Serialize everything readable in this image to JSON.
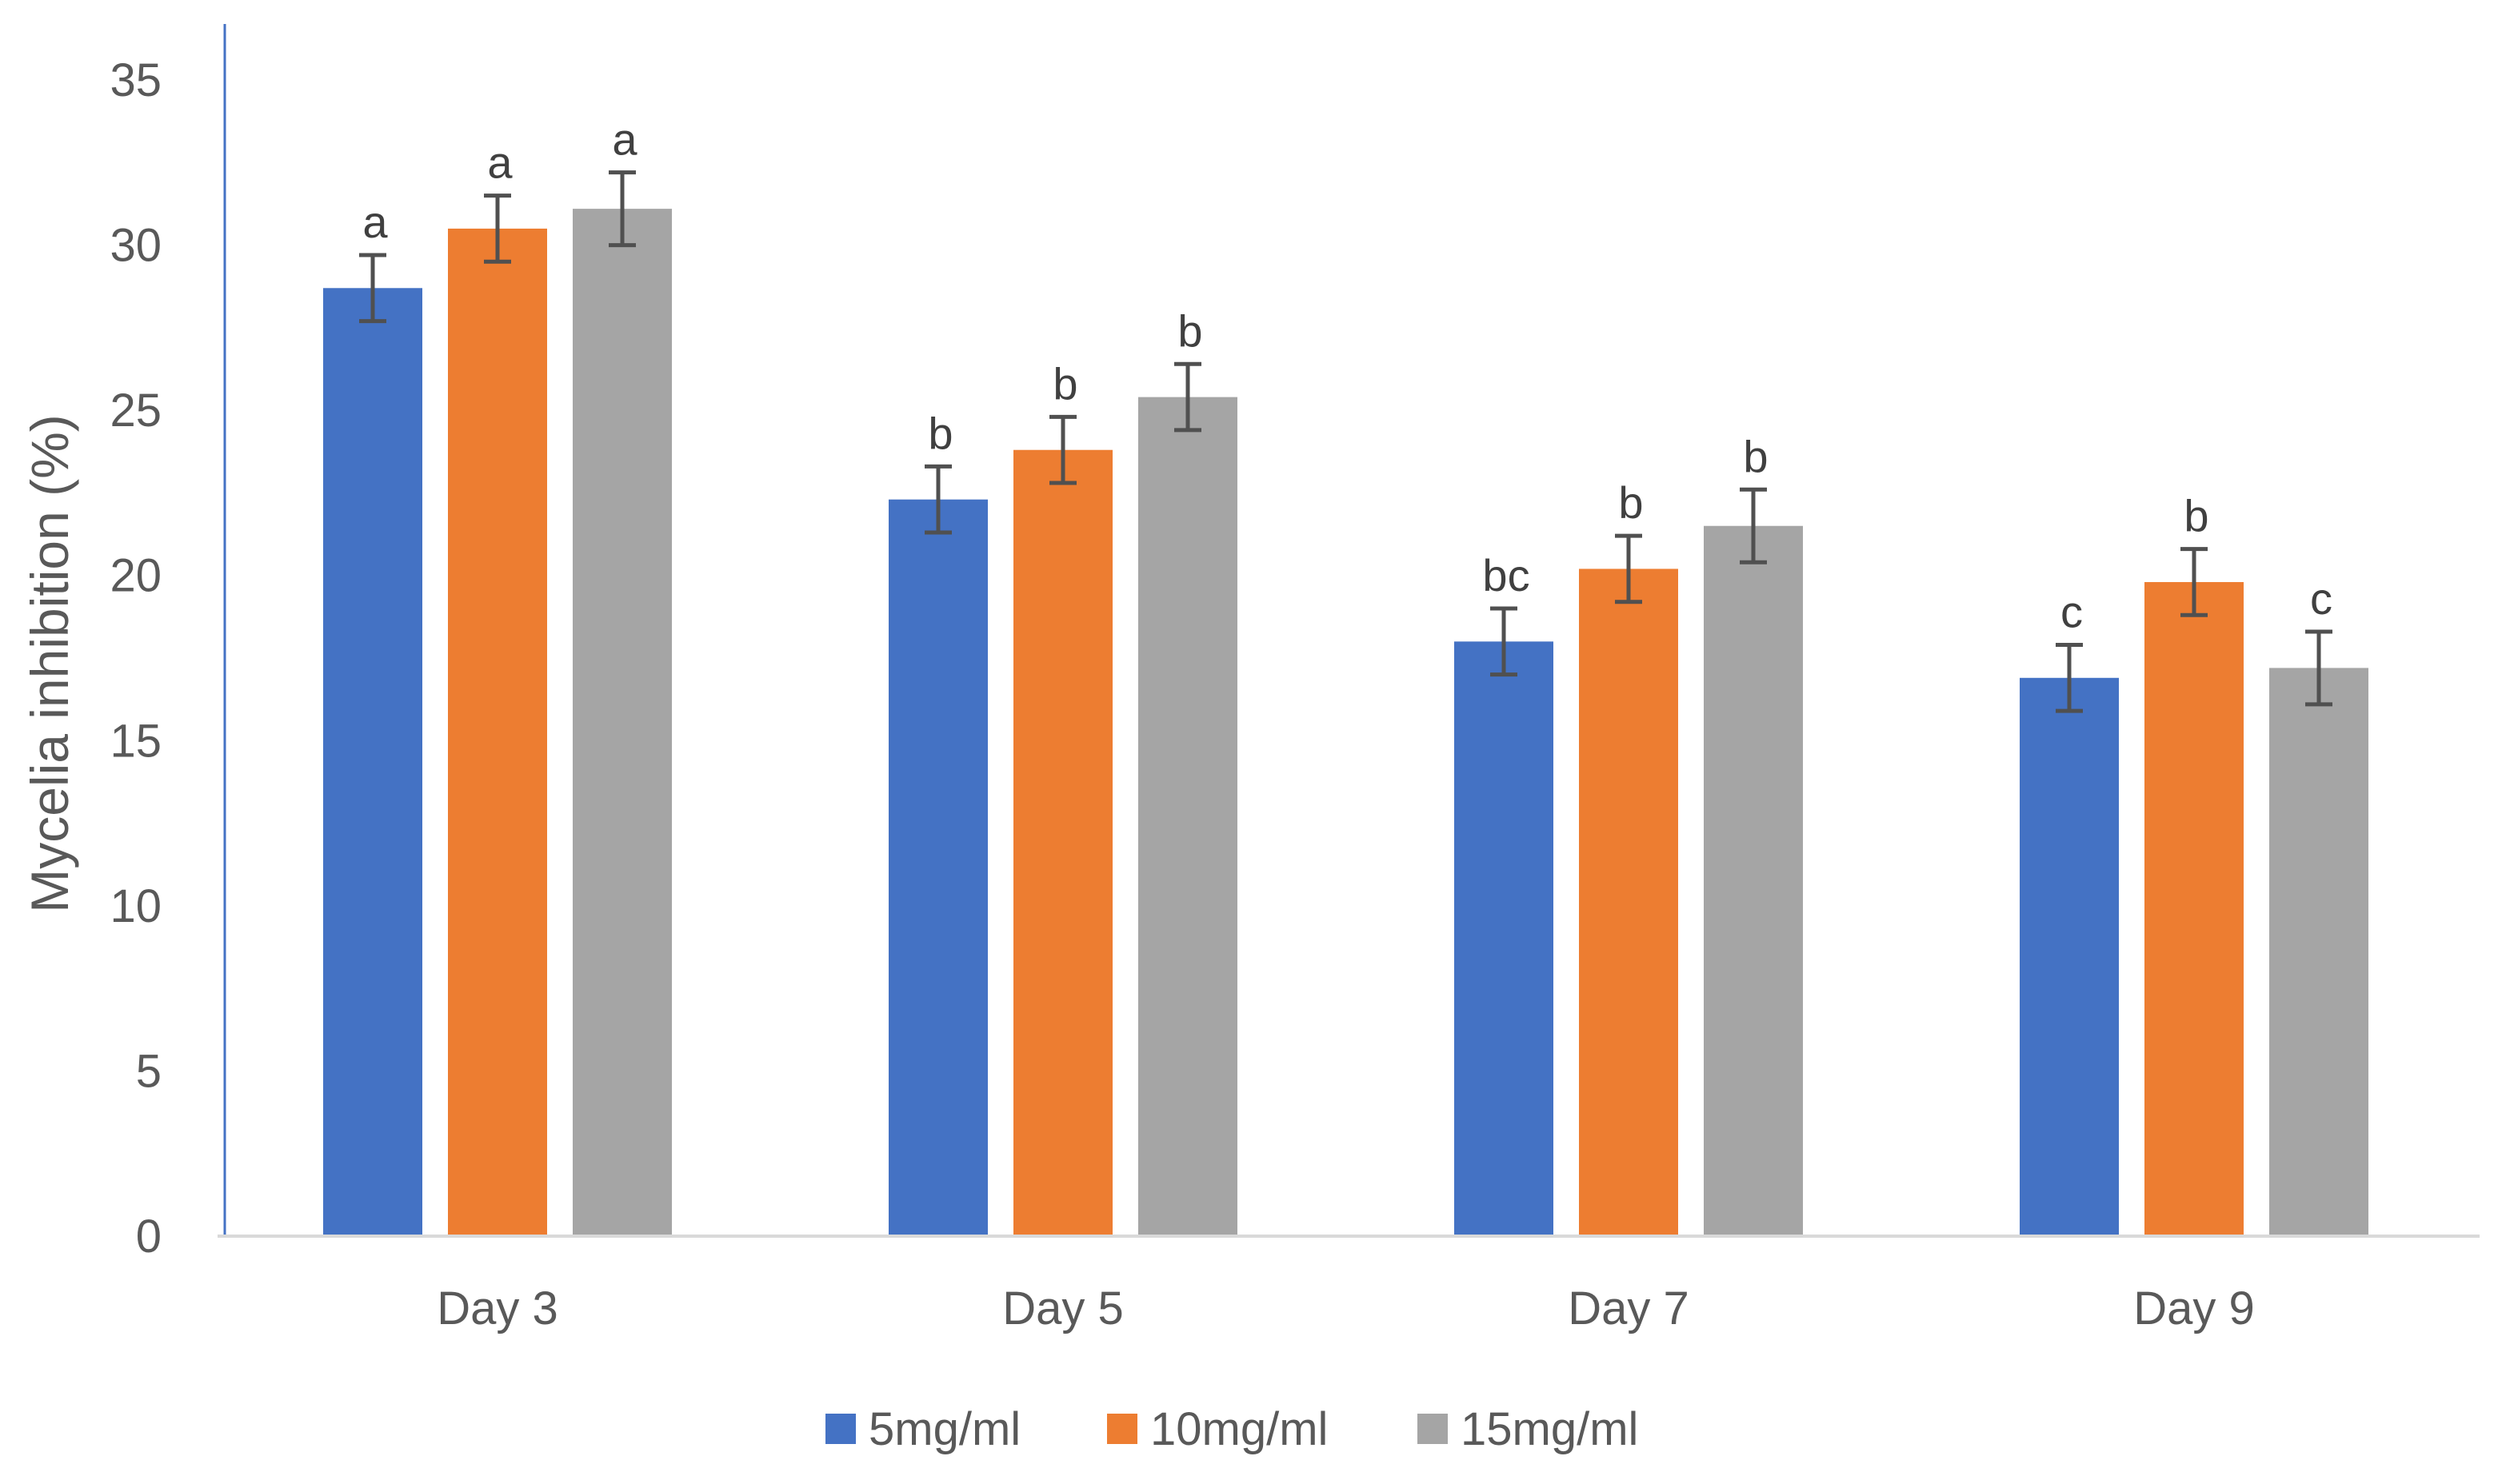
{
  "chart_data": {
    "type": "bar",
    "title": "",
    "xlabel": "",
    "ylabel": "Mycelia inhibition (%)",
    "ylim": [
      0,
      35
    ],
    "yticks": [
      0,
      5,
      10,
      15,
      20,
      25,
      30,
      35
    ],
    "grid": false,
    "legend_position": "bottom",
    "categories": [
      "Day 3",
      "Day 5",
      "Day 7",
      "Day 9"
    ],
    "series": [
      {
        "name": "5mg/ml",
        "color": "#4472C4",
        "values": [
          28.7,
          22.3,
          18.0,
          16.9
        ],
        "errors": [
          1.0,
          1.0,
          1.0,
          1.0
        ],
        "labels": [
          "a",
          "b",
          "bc",
          "c"
        ]
      },
      {
        "name": "10mg/ml",
        "color": "#ED7D31",
        "values": [
          30.5,
          23.8,
          20.2,
          19.8
        ],
        "errors": [
          1.0,
          1.0,
          1.0,
          1.0
        ],
        "labels": [
          "a",
          "b",
          "b",
          "b"
        ]
      },
      {
        "name": "15mg/ml",
        "color": "#A5A5A5",
        "values": [
          31.1,
          25.4,
          21.5,
          17.2
        ],
        "errors": [
          1.1,
          1.0,
          1.1,
          1.1
        ],
        "labels": [
          "a",
          "b",
          "b",
          "c"
        ]
      }
    ]
  }
}
